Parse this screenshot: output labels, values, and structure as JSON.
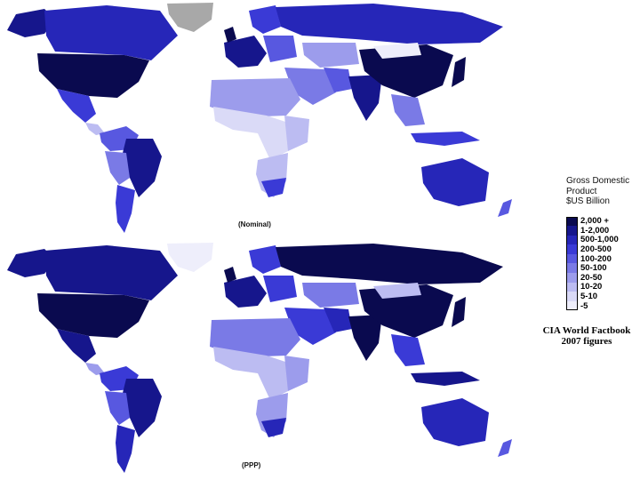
{
  "maps": [
    {
      "id": "nominal",
      "caption": "(Nominal)"
    },
    {
      "id": "ppp",
      "caption": "(PPP)"
    }
  ],
  "legend": {
    "title_lines": [
      "Gross Domestic",
      "Product",
      "$US Billion"
    ],
    "classes": [
      {
        "label": "2,000 +",
        "color": "#0a0a4f"
      },
      {
        "label": "1-2,000",
        "color": "#16168c"
      },
      {
        "label": "500-1,000",
        "color": "#2626b8"
      },
      {
        "label": "200-500",
        "color": "#3a3ad6"
      },
      {
        "label": "100-200",
        "color": "#5858e0"
      },
      {
        "label": "50-100",
        "color": "#7a7ae6"
      },
      {
        "label": "20-50",
        "color": "#9c9cec"
      },
      {
        "label": "10-20",
        "color": "#bcbcf2"
      },
      {
        "label": "5-10",
        "color": "#dadaf7"
      },
      {
        "label": "-5",
        "color": "#eeeefb"
      }
    ],
    "no_data_color": "#a8a8a8"
  },
  "source": {
    "line1": "CIA World Factbook",
    "line2": "2007 figures"
  }
}
